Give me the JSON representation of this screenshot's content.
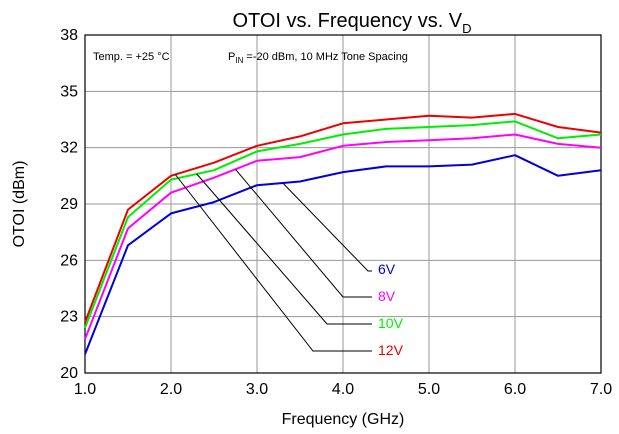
{
  "chart_data": {
    "type": "line",
    "title_main": "OTOI vs. Frequency vs. V",
    "title_sub": "D",
    "xlabel": "Frequency (GHz)",
    "ylabel": "OTOI (dBm)",
    "xlim": [
      1.0,
      7.0
    ],
    "ylim": [
      20,
      38
    ],
    "xticks": [
      "1.0",
      "2.0",
      "3.0",
      "4.0",
      "5.0",
      "6.0",
      "7.0"
    ],
    "yticks": [
      "20",
      "23",
      "26",
      "29",
      "32",
      "35",
      "38"
    ],
    "grid": true,
    "annotations": {
      "temp": "Temp. = +25 °C",
      "pin_prefix": "P",
      "pin_sub": "IN",
      "pin_suffix": " =-20 dBm, 10 MHz Tone Spacing"
    },
    "x": [
      1.0,
      1.5,
      2.0,
      2.5,
      3.0,
      3.5,
      4.0,
      4.5,
      5.0,
      5.5,
      6.0,
      6.5,
      7.0
    ],
    "series": [
      {
        "name": "6V",
        "color": "#0000dd",
        "values": [
          21.0,
          26.8,
          28.5,
          29.1,
          30.0,
          30.2,
          30.7,
          31.0,
          31.0,
          31.1,
          31.6,
          30.5,
          30.8
        ]
      },
      {
        "name": "8V",
        "color": "#ff00ff",
        "values": [
          21.8,
          27.7,
          29.6,
          30.4,
          31.3,
          31.5,
          32.1,
          32.3,
          32.4,
          32.5,
          32.7,
          32.2,
          32.0
        ]
      },
      {
        "name": "10V",
        "color": "#00ee00",
        "values": [
          22.4,
          28.3,
          30.3,
          30.8,
          31.8,
          32.2,
          32.7,
          33.0,
          33.1,
          33.2,
          33.4,
          32.5,
          32.7
        ]
      },
      {
        "name": "12V",
        "color": "#ee0000",
        "values": [
          22.7,
          28.7,
          30.5,
          31.2,
          32.1,
          32.6,
          33.3,
          33.5,
          33.7,
          33.6,
          33.8,
          33.1,
          32.8
        ]
      }
    ]
  }
}
